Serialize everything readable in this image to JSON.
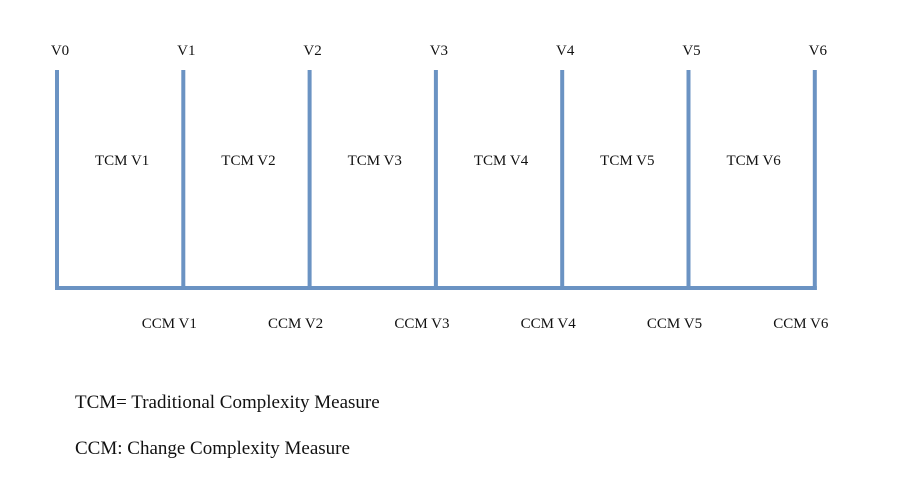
{
  "diagram": {
    "line_color": "#6b93c3",
    "version_labels": [
      "V0",
      "V1",
      "V2",
      "V3",
      "V4",
      "V5",
      "V6"
    ],
    "tcm_labels": [
      "TCM V1",
      "TCM V2",
      "TCM V3",
      "TCM V4",
      "TCM V5",
      "TCM V6"
    ],
    "ccm_labels": [
      "CCM V1",
      "CCM V2",
      "CCM V3",
      "CCM V4",
      "CCM V5",
      "CCM V6"
    ]
  },
  "legend": {
    "tcm": "TCM= Traditional Complexity Measure",
    "ccm": "CCM: Change Complexity Measure"
  }
}
